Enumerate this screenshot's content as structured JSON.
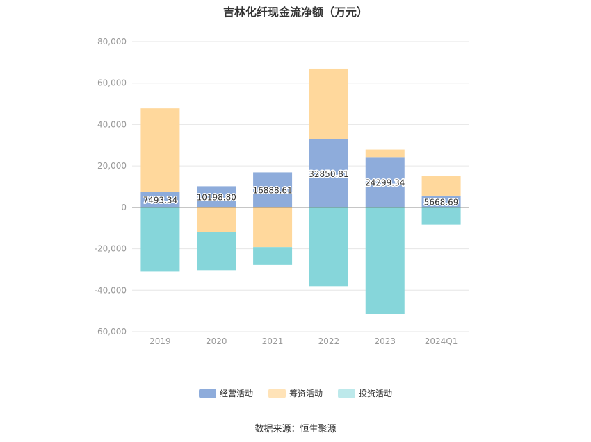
{
  "chart_data": {
    "type": "bar",
    "stacked": true,
    "title": "吉林化纤现金流净额（万元）",
    "categories": [
      "2019",
      "2020",
      "2021",
      "2022",
      "2023",
      "2024Q1"
    ],
    "ylim": [
      -60000,
      80000
    ],
    "yticks": [
      "80,000",
      "60,000",
      "40,000",
      "20,000",
      "0",
      "-20,000",
      "-40,000",
      "-60,000"
    ],
    "ytick_values": [
      80000,
      60000,
      40000,
      20000,
      0,
      -20000,
      -40000,
      -60000
    ],
    "grid": true,
    "legend_position": "bottom",
    "series": [
      {
        "name": "经营活动",
        "color": "#8eacdb",
        "values": [
          7493.34,
          10198.8,
          16888.61,
          32850.81,
          24299.34,
          5668.69
        ],
        "labels": [
          "7493.34",
          "10198.80",
          "16888.61",
          "32850.81",
          "24299.34",
          "5668.69"
        ]
      },
      {
        "name": "筹资活动",
        "color": "#ffd89c",
        "values": [
          40300,
          -11800,
          -19200,
          34100,
          3600,
          9600
        ]
      },
      {
        "name": "投资活动",
        "color": "#86d6da",
        "values": [
          -31000,
          -18500,
          -8600,
          -38000,
          -51500,
          -8300
        ]
      }
    ]
  },
  "legend": {
    "items": [
      {
        "label": "经营活动",
        "color": "#8eacdb"
      },
      {
        "label": "筹资活动",
        "color": "#ffe3b8"
      },
      {
        "label": "投资活动",
        "color": "#bde9eb"
      }
    ]
  },
  "source": "数据来源：恒生聚源"
}
